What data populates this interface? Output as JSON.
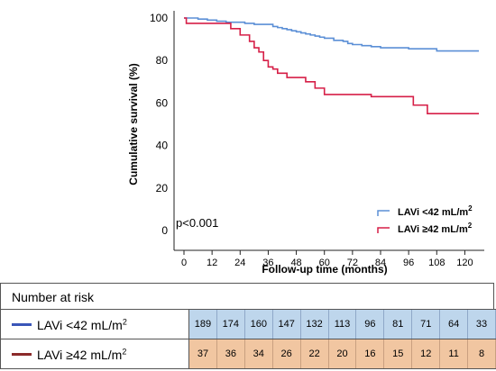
{
  "chart_data": {
    "type": "line",
    "subtype": "kaplan-meier step curve",
    "ylabel": "Cumulative survival (%)",
    "xlabel": "Follow-up time (months)",
    "xlim": [
      0,
      126
    ],
    "ylim": [
      0,
      100
    ],
    "xticks": [
      0,
      12,
      24,
      36,
      48,
      60,
      72,
      84,
      96,
      108,
      120
    ],
    "yticks": [
      0,
      20,
      40,
      60,
      80,
      100
    ],
    "annotation": "p<0.001",
    "legend_position": "bottom-right",
    "series": [
      {
        "name": "LAVi <42 mL/m²",
        "color": "#5b8fd6",
        "x": [
          0,
          6,
          10,
          14,
          18,
          22,
          26,
          30,
          34,
          38,
          40,
          42,
          44,
          46,
          48,
          50,
          52,
          54,
          56,
          58,
          60,
          64,
          68,
          70,
          72,
          76,
          80,
          84,
          96,
          108,
          126
        ],
        "y": [
          100,
          99.5,
          99,
          98.5,
          98,
          98,
          97.5,
          97,
          97,
          96,
          95.5,
          95,
          94.5,
          94,
          93.5,
          93,
          92.5,
          92,
          91.5,
          91,
          90.5,
          89.5,
          89,
          88,
          87.5,
          87,
          86.5,
          86,
          85.5,
          84.5,
          84.5
        ]
      },
      {
        "name": "LAVi ≥42 mL/m²",
        "color": "#d61f47",
        "x": [
          0,
          1,
          12,
          20,
          24,
          28,
          30,
          32,
          34,
          36,
          38,
          40,
          44,
          52,
          56,
          60,
          72,
          80,
          90,
          98,
          104,
          126
        ],
        "y": [
          100,
          97.5,
          97.5,
          95,
          92,
          89,
          86,
          84,
          80,
          77,
          76,
          74,
          72,
          70,
          67,
          64,
          64,
          63,
          63,
          59,
          55,
          55
        ]
      }
    ]
  },
  "risk_table": {
    "header": "Number at risk",
    "rows": [
      {
        "label_text": "LAVi <42 mL/m",
        "label_sup": "2",
        "color": "#3a56b8",
        "values": [
          "189",
          "174",
          "160",
          "147",
          "132",
          "113",
          "96",
          "81",
          "71",
          "64",
          "33"
        ]
      },
      {
        "label_text": "LAVi ≥42 mL/m",
        "label_sup": "2",
        "color": "#8b2a2a",
        "values": [
          "37",
          "36",
          "34",
          "26",
          "22",
          "20",
          "16",
          "15",
          "12",
          "11",
          "8"
        ]
      }
    ]
  },
  "legend": {
    "item1_text": "LAVi <42 mL/m",
    "item1_sup": "2",
    "item2_text": "LAVi ≥42 mL/m",
    "item2_sup": "2"
  }
}
